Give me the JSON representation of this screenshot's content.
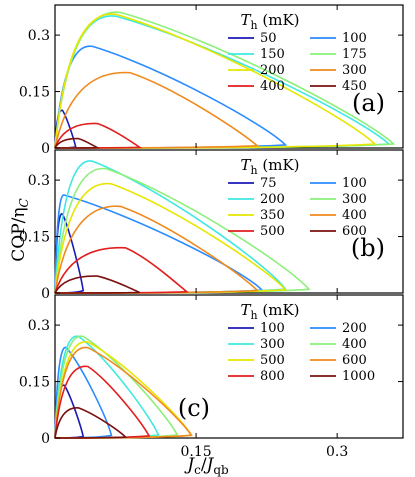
{
  "figure": {
    "ylabel": "COP/ηC",
    "xlabel": "Jc/Jqb"
  },
  "chart_data": [
    {
      "type": "line",
      "panel": "(a)",
      "legend_title": "Th (mK)",
      "legend_entries": [
        "50",
        "100",
        "150",
        "175",
        "200",
        "300",
        "400",
        "450"
      ],
      "xlim": [
        0,
        0.37
      ],
      "ylim": [
        0,
        0.38
      ],
      "xticks": [
        "0.15",
        "0.3"
      ],
      "xtick_values": [
        0.15,
        0.3
      ],
      "yticks": [
        "0",
        "0.15",
        "0.3"
      ],
      "ytick_values": [
        0,
        0.15,
        0.3
      ],
      "series": [
        {
          "name": "50",
          "color": "#1a1ab8",
          "xmax": 0.022,
          "peak_x": 0.008,
          "peak_y": 0.1
        },
        {
          "name": "100",
          "color": "#2b8cff",
          "xmax": 0.245,
          "peak_x": 0.04,
          "peak_y": 0.27
        },
        {
          "name": "150",
          "color": "#3fe8e0",
          "xmax": 0.355,
          "peak_x": 0.065,
          "peak_y": 0.35
        },
        {
          "name": "175",
          "color": "#8cf07a",
          "xmax": 0.36,
          "peak_x": 0.07,
          "peak_y": 0.36
        },
        {
          "name": "200",
          "color": "#e6e600",
          "xmax": 0.34,
          "peak_x": 0.065,
          "peak_y": 0.355
        },
        {
          "name": "300",
          "color": "#f08a1f",
          "xmax": 0.215,
          "peak_x": 0.08,
          "peak_y": 0.2
        },
        {
          "name": "400",
          "color": "#e21e1e",
          "xmax": 0.09,
          "peak_x": 0.045,
          "peak_y": 0.065
        },
        {
          "name": "450",
          "color": "#7a1010",
          "xmax": 0.045,
          "peak_x": 0.025,
          "peak_y": 0.025
        }
      ]
    },
    {
      "type": "line",
      "panel": "(b)",
      "legend_title": "Th (mK)",
      "legend_entries": [
        "75",
        "100",
        "200",
        "300",
        "350",
        "400",
        "500",
        "600"
      ],
      "xlim": [
        0,
        0.37
      ],
      "ylim": [
        0,
        0.38
      ],
      "xticks": [
        "0.15",
        "0.3"
      ],
      "xtick_values": [
        0.15,
        0.3
      ],
      "yticks": [
        "0",
        "0.15",
        "0.3"
      ],
      "ytick_values": [
        0,
        0.15,
        0.3
      ],
      "series": [
        {
          "name": "75",
          "color": "#1a1ab8",
          "xmax": 0.03,
          "peak_x": 0.008,
          "peak_y": 0.21
        },
        {
          "name": "100",
          "color": "#2b8cff",
          "xmax": 0.22,
          "peak_x": 0.01,
          "peak_y": 0.26
        },
        {
          "name": "200",
          "color": "#3fe8e0",
          "xmax": 0.245,
          "peak_x": 0.04,
          "peak_y": 0.35
        },
        {
          "name": "300",
          "color": "#8cf07a",
          "xmax": 0.27,
          "peak_x": 0.055,
          "peak_y": 0.33
        },
        {
          "name": "350",
          "color": "#e6e600",
          "xmax": 0.245,
          "peak_x": 0.06,
          "peak_y": 0.29
        },
        {
          "name": "400",
          "color": "#f08a1f",
          "xmax": 0.215,
          "peak_x": 0.07,
          "peak_y": 0.23
        },
        {
          "name": "500",
          "color": "#e21e1e",
          "xmax": 0.14,
          "peak_x": 0.075,
          "peak_y": 0.12
        },
        {
          "name": "600",
          "color": "#7a1010",
          "xmax": 0.09,
          "peak_x": 0.045,
          "peak_y": 0.045
        }
      ]
    },
    {
      "type": "line",
      "panel": "(c)",
      "legend_title": "Th (mK)",
      "legend_entries": [
        "100",
        "200",
        "300",
        "400",
        "500",
        "600",
        "800",
        "1000"
      ],
      "xlim": [
        0,
        0.37
      ],
      "ylim": [
        0,
        0.38
      ],
      "xticks": [
        "0.15",
        "0.3"
      ],
      "xtick_values": [
        0.15,
        0.3
      ],
      "yticks": [
        "0",
        "0.15",
        "0.3"
      ],
      "ytick_values": [
        0,
        0.15,
        0.3
      ],
      "series": [
        {
          "name": "100",
          "color": "#1a1ab8",
          "xmax": 0.03,
          "peak_x": 0.01,
          "peak_y": 0.14
        },
        {
          "name": "200",
          "color": "#2b8cff",
          "xmax": 0.06,
          "peak_x": 0.012,
          "peak_y": 0.24
        },
        {
          "name": "300",
          "color": "#3fe8e0",
          "xmax": 0.11,
          "peak_x": 0.025,
          "peak_y": 0.27
        },
        {
          "name": "400",
          "color": "#8cf07a",
          "xmax": 0.13,
          "peak_x": 0.03,
          "peak_y": 0.27
        },
        {
          "name": "500",
          "color": "#e6e600",
          "xmax": 0.145,
          "peak_x": 0.035,
          "peak_y": 0.255
        },
        {
          "name": "600",
          "color": "#f08a1f",
          "xmax": 0.145,
          "peak_x": 0.035,
          "peak_y": 0.24
        },
        {
          "name": "800",
          "color": "#e21e1e",
          "xmax": 0.1,
          "peak_x": 0.035,
          "peak_y": 0.19
        },
        {
          "name": "1000",
          "color": "#7a1010",
          "xmax": 0.075,
          "peak_x": 0.025,
          "peak_y": 0.08
        }
      ]
    }
  ]
}
